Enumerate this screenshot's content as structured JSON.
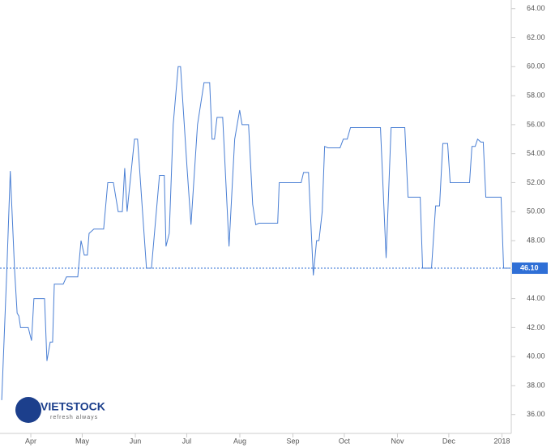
{
  "chart_data": {
    "type": "line",
    "x": [
      74,
      77,
      79,
      81.5,
      83,
      84,
      85,
      89.5,
      91.4,
      92.8,
      99,
      100.4,
      102.3,
      103.7,
      104.7,
      109.9,
      111.8,
      118.4,
      120.3,
      122.2,
      124,
      125,
      127.8,
      133.5,
      135.9,
      139.2,
      142,
      144.4,
      145.8,
      147.2,
      151.5,
      153.3,
      156.2,
      158.5,
      161.4,
      166.1,
      168.9,
      169.9,
      171.8,
      174.1,
      177,
      178.4,
      182.2,
      184.5,
      188.3,
      192.1,
      195.4,
      196.8,
      198.2,
      199.7,
      203,
      206.7,
      210,
      212.9,
      214.3,
      218.1,
      220.5,
      222.3,
      224.2,
      235.1,
      236,
      248.8,
      250.2,
      253.1,
      255.9,
      257.8,
      259.2,
      261.1,
      262.5,
      264.4,
      271.5,
      273.4,
      275.7,
      277.6,
      295.1,
      298.4,
      301.3,
      309.3,
      311.2,
      318.3,
      319.7,
      324.9,
      327.3,
      329.6,
      331.5,
      334.3,
      335.8,
      347.1,
      348.5,
      350.4,
      351.8,
      353.7,
      355.1,
      356.6,
      365.5,
      367,
      370.7
    ],
    "series": [
      {
        "color": "#4a7fd4",
        "values": [
          37,
          46,
          52.8,
          46,
          43,
          42.8,
          42,
          42,
          41.1,
          44,
          44,
          39.7,
          41,
          41,
          45,
          45,
          45.5,
          45.5,
          48,
          47,
          47,
          48.5,
          48.8,
          48.8,
          52,
          52,
          50,
          50,
          53,
          50,
          55,
          55,
          50,
          46.1,
          46.1,
          52.5,
          52.5,
          47.6,
          48.5,
          56,
          60,
          60,
          53,
          49.1,
          56,
          58.9,
          58.9,
          55,
          55,
          56.5,
          56.5,
          47.6,
          55,
          57,
          56,
          56,
          50.5,
          49.1,
          49.2,
          49.2,
          52,
          52,
          52.7,
          52.7,
          45.6,
          48,
          48,
          50,
          54.5,
          54.4,
          54.4,
          55,
          55,
          55.8,
          55.8,
          46.8,
          55.8,
          55.8,
          51,
          51,
          46.1,
          46.1,
          50.4,
          50.4,
          54.7,
          54.7,
          52,
          52,
          54.5,
          54.5,
          55,
          54.8,
          54.8,
          51,
          51,
          46.1,
          46.1
        ]
      }
    ],
    "xlim": [
      73,
      371
    ],
    "xticks": [
      {
        "value": 91,
        "label": "Apr"
      },
      {
        "value": 121,
        "label": "May"
      },
      {
        "value": 152,
        "label": "Jun"
      },
      {
        "value": 182,
        "label": "Jul"
      },
      {
        "value": 213,
        "label": "Aug"
      },
      {
        "value": 244,
        "label": "Sep"
      },
      {
        "value": 274,
        "label": "Oct"
      },
      {
        "value": 305,
        "label": "Nov"
      },
      {
        "value": 335,
        "label": "Dec"
      },
      {
        "value": 366,
        "label": "2018"
      }
    ],
    "ylim": [
      34.7,
      64.6
    ],
    "yticks": [
      {
        "value": 36,
        "label": "36.00"
      },
      {
        "value": 38,
        "label": "38.00"
      },
      {
        "value": 40,
        "label": "40.00"
      },
      {
        "value": 42,
        "label": "42.00"
      },
      {
        "value": 44,
        "label": "44.00"
      },
      {
        "value": 46,
        "label": "46.00"
      },
      {
        "value": 48,
        "label": "48.00"
      },
      {
        "value": 50,
        "label": "50.00"
      },
      {
        "value": 52,
        "label": "52.00"
      },
      {
        "value": 54,
        "label": "54.00"
      },
      {
        "value": 56,
        "label": "56.00"
      },
      {
        "value": 58,
        "label": "58.00"
      },
      {
        "value": 60,
        "label": "60.00"
      },
      {
        "value": 62,
        "label": "62.00"
      },
      {
        "value": 64,
        "label": "64.00"
      }
    ],
    "price_line": {
      "value": 46.1,
      "label": "46.10",
      "color": "#2f6fd6"
    },
    "logo": {
      "name": "VIETSTOCK",
      "tagline": "refresh always"
    }
  }
}
